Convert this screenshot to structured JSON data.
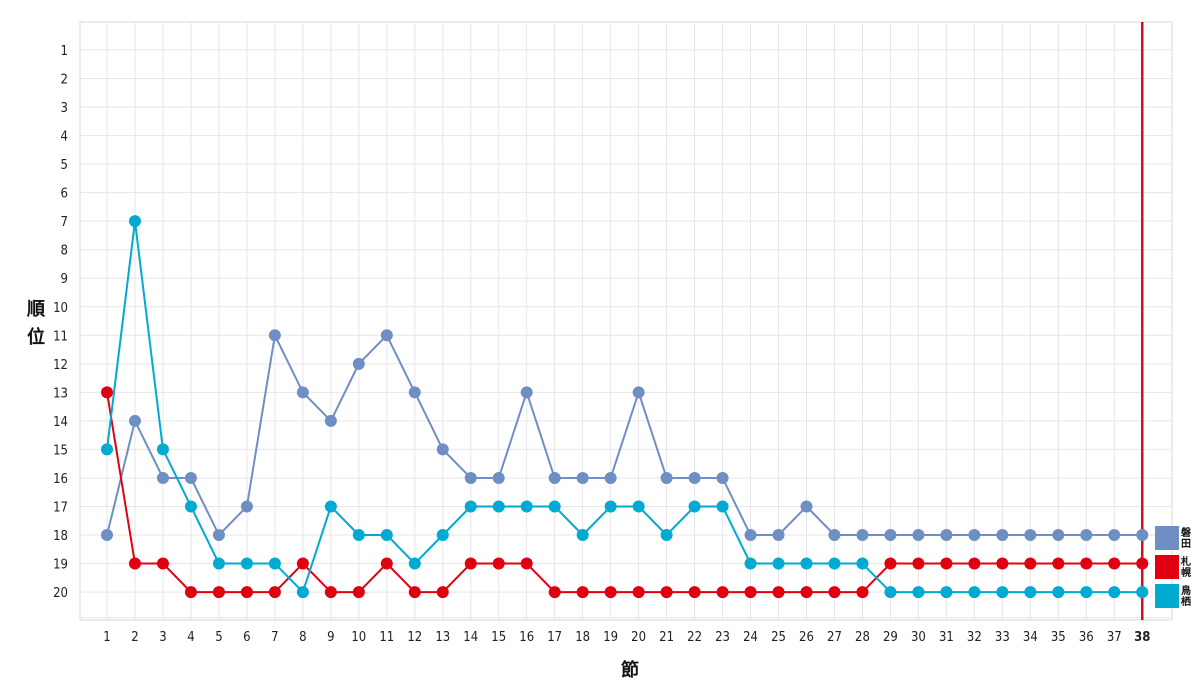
{
  "chart_data": {
    "type": "line",
    "title": "",
    "xlabel": "節",
    "ylabel": "順位",
    "x": [
      1,
      2,
      3,
      4,
      5,
      6,
      7,
      8,
      9,
      10,
      11,
      12,
      13,
      14,
      15,
      16,
      17,
      18,
      19,
      20,
      21,
      22,
      23,
      24,
      25,
      26,
      27,
      28,
      29,
      30,
      31,
      32,
      33,
      34,
      35,
      36,
      37,
      38
    ],
    "y_ticks": [
      1,
      2,
      3,
      4,
      5,
      6,
      7,
      8,
      9,
      10,
      11,
      12,
      13,
      14,
      15,
      16,
      17,
      18,
      19,
      20
    ],
    "ylim": [
      0.5,
      20.9
    ],
    "y_inverted": true,
    "grid": true,
    "legend_position": "right-bottom",
    "current_round": 38,
    "current_round_color": "#d0101e",
    "series": [
      {
        "name": "磐田",
        "legend_lines": [
          "磐",
          "田"
        ],
        "color": "#6f8fc4",
        "values": [
          18,
          14,
          16,
          16,
          18,
          17,
          11,
          13,
          14,
          12,
          11,
          13,
          15,
          16,
          16,
          13,
          16,
          16,
          16,
          13,
          16,
          16,
          16,
          18,
          18,
          17,
          18,
          18,
          18,
          18,
          18,
          18,
          18,
          18,
          18,
          18,
          18,
          18
        ]
      },
      {
        "name": "札幌",
        "legend_lines": [
          "札",
          "幌"
        ],
        "color": "#e00010",
        "values": [
          13,
          19,
          19,
          20,
          20,
          20,
          20,
          19,
          20,
          20,
          19,
          20,
          20,
          19,
          19,
          19,
          20,
          20,
          20,
          20,
          20,
          20,
          20,
          20,
          20,
          20,
          20,
          20,
          19,
          19,
          19,
          19,
          19,
          19,
          19,
          19,
          19,
          19
        ]
      },
      {
        "name": "鳥栖",
        "legend_lines": [
          "鳥",
          "栖"
        ],
        "color": "#00aad0",
        "values": [
          15,
          7,
          15,
          17,
          19,
          19,
          19,
          20,
          17,
          18,
          18,
          19,
          18,
          17,
          17,
          17,
          17,
          18,
          17,
          17,
          18,
          17,
          17,
          19,
          19,
          19,
          19,
          19,
          20,
          20,
          20,
          20,
          20,
          20,
          20,
          20,
          20,
          20
        ]
      }
    ]
  }
}
